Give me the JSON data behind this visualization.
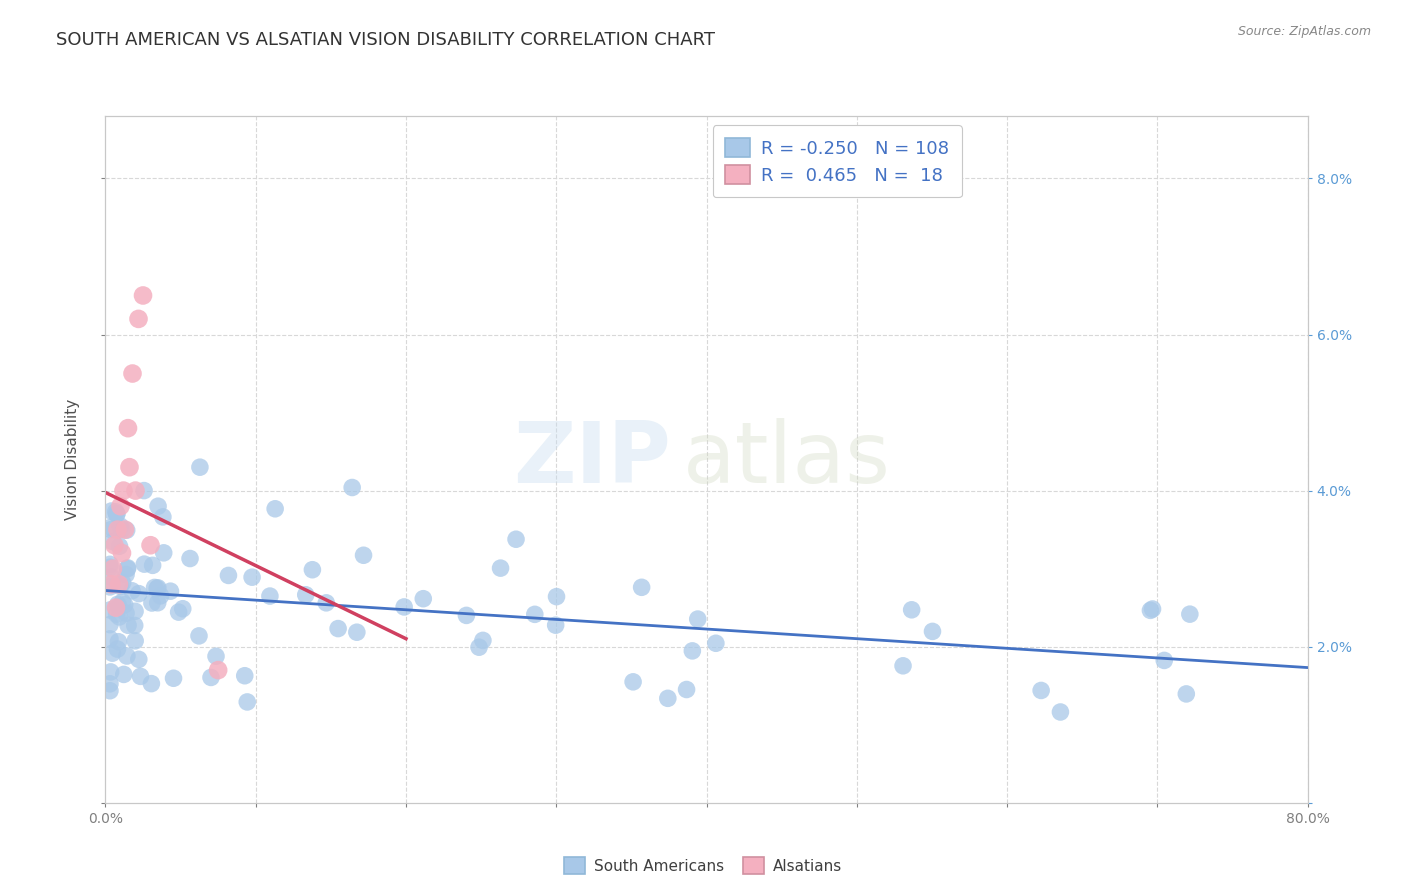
{
  "title": "SOUTH AMERICAN VS ALSATIAN VISION DISABILITY CORRELATION CHART",
  "source": "Source: ZipAtlas.com",
  "ylabel": "Vision Disability",
  "xlim": [
    0.0,
    0.8
  ],
  "ylim": [
    0.0,
    0.088
  ],
  "xticks": [
    0.0,
    0.1,
    0.2,
    0.3,
    0.4,
    0.5,
    0.6,
    0.7,
    0.8
  ],
  "xticklabels": [
    "0.0%",
    "",
    "",
    "",
    "",
    "",
    "",
    "",
    "80.0%"
  ],
  "yticks": [
    0.0,
    0.02,
    0.04,
    0.06,
    0.08
  ],
  "right_yticklabels": [
    "",
    "2.0%",
    "4.0%",
    "6.0%",
    "8.0%"
  ],
  "blue_color": "#a8c8e8",
  "pink_color": "#f4b0c0",
  "blue_line_color": "#4472c4",
  "pink_line_color": "#d04060",
  "blue_R": -0.25,
  "blue_N": 108,
  "pink_R": 0.465,
  "pink_N": 18,
  "watermark_zip": "ZIP",
  "watermark_atlas": "atlas",
  "background_color": "#ffffff",
  "grid_color": "#d8d8d8",
  "title_color": "#333333",
  "legend_label_blue": "South Americans",
  "legend_label_pink": "Alsatians"
}
